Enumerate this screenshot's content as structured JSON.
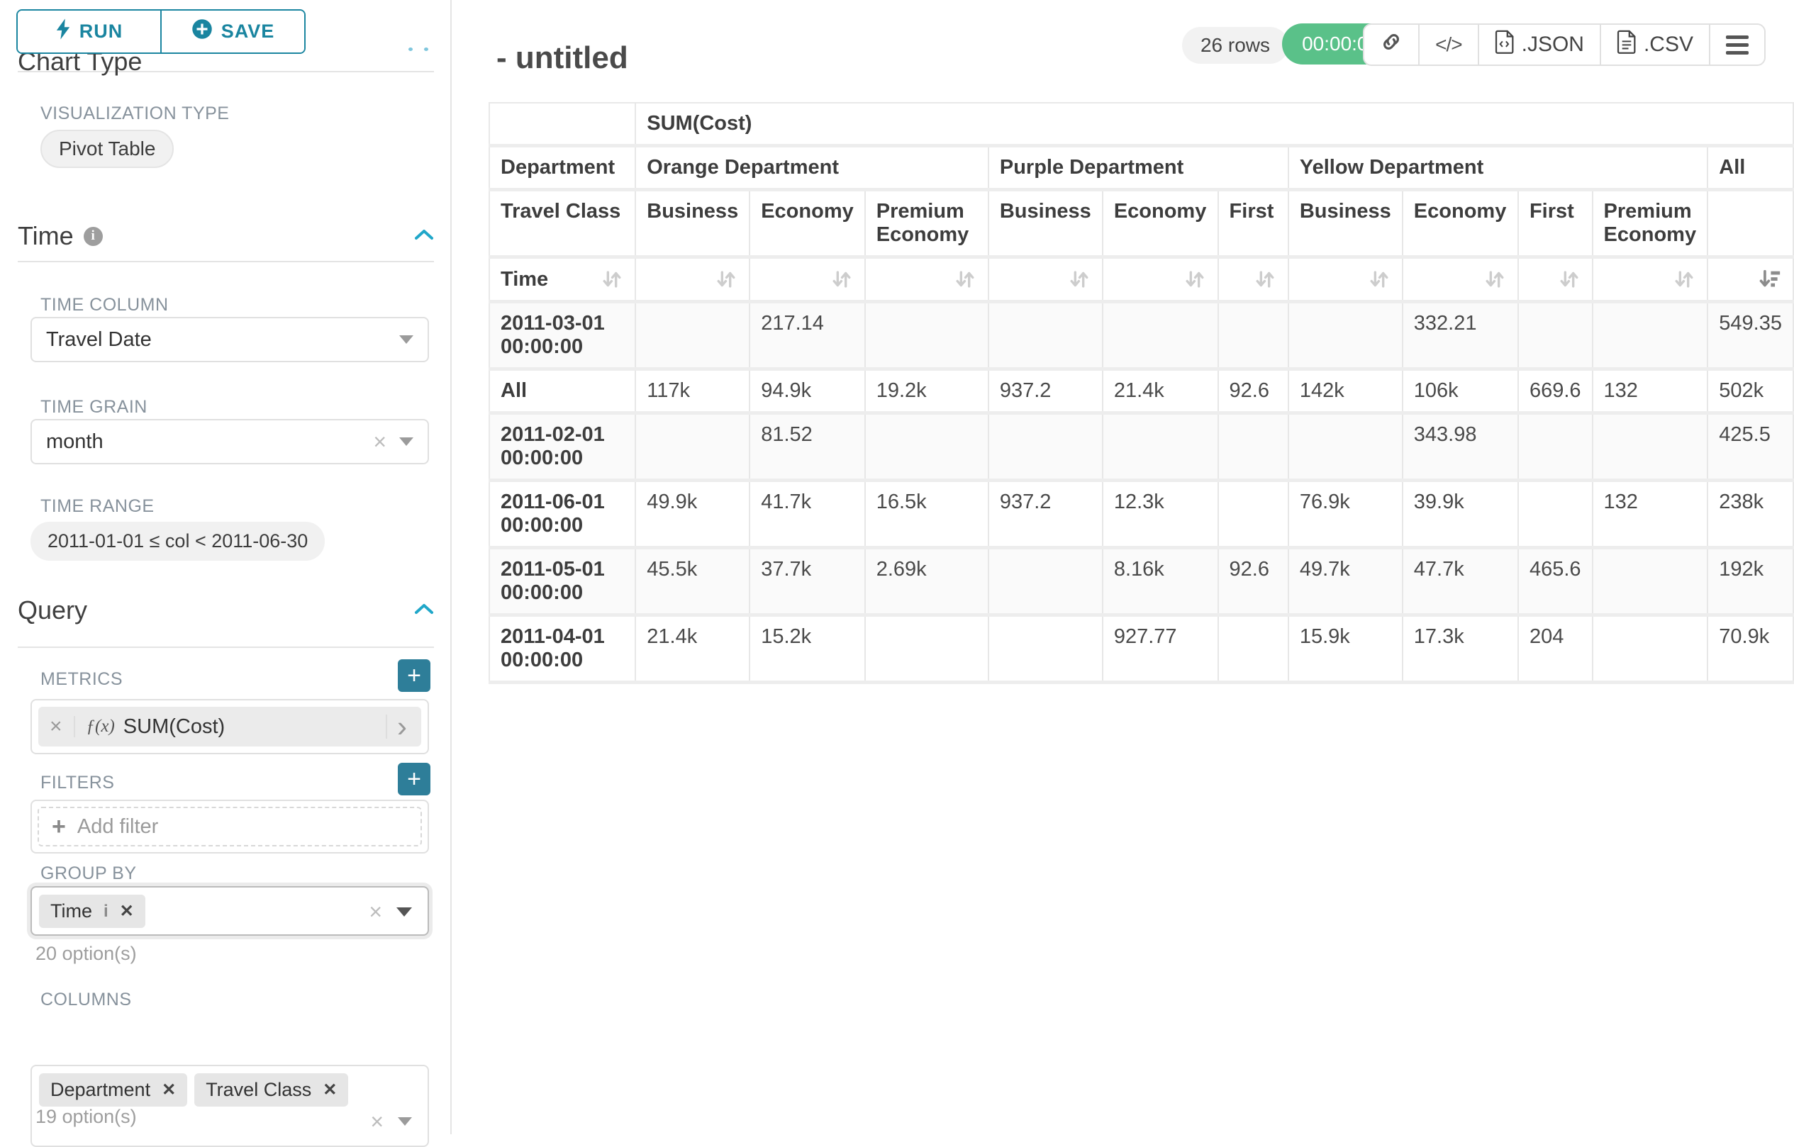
{
  "colors": {
    "accent_teal": "#1a85a0",
    "accent_blue": "#20a7c9",
    "timer_green": "#5ac189",
    "plus_button_teal": "#2e7e99"
  },
  "icons": {
    "run": "lightning-bolt-icon",
    "save": "plus-circle-icon",
    "time_info": "info-icon",
    "collapse": "chevron-up-icon",
    "select_caret": "chevron-down-icon",
    "metric_fn": "function-icon",
    "metric_open": "chevron-right-icon",
    "share": "link-icon",
    "embed": "code-icon",
    "export_json": "file-json-icon",
    "export_csv": "file-csv-icon",
    "menu": "hamburger-menu-icon",
    "sort": "sort-arrows-icon",
    "sort_desc": "sort-descending-icon"
  },
  "sidebar": {
    "run_label": "RUN",
    "save_label": "SAVE",
    "chart_type_heading": "Chart Type",
    "viz_label": "VISUALIZATION TYPE",
    "viz_value": "Pivot Table",
    "time": {
      "title": "Time",
      "column_label": "TIME COLUMN",
      "column_value": "Travel Date",
      "grain_label": "TIME GRAIN",
      "grain_value": "month",
      "range_label": "TIME RANGE",
      "range_value": "2011-01-01 ≤ col < 2011-06-30"
    },
    "query": {
      "title": "Query",
      "metrics_label": "METRICS",
      "metric_fx": "ƒ(x)",
      "metric_value": "SUM(Cost)",
      "filters_label": "FILTERS",
      "add_filter": "Add filter",
      "groupby_label": "GROUP BY",
      "groupby_tags": [
        "Time"
      ],
      "groupby_hint": "20 option(s)",
      "columns_label": "COLUMNS",
      "columns_tags": [
        "Department",
        "Travel Class"
      ],
      "columns_hint": "19 option(s)"
    }
  },
  "header": {
    "title": "- untitled",
    "rows_badge": "26 rows",
    "timer": "00:00:00.18",
    "json_label": ".JSON",
    "csv_label": ".CSV"
  },
  "chart_data": {
    "type": "table",
    "metric": "SUM(Cost)",
    "row_axis": "Time",
    "col_axis": "Department",
    "sub_col_axis": "Travel Class",
    "col_groups": [
      {
        "label": "Orange Department",
        "children": [
          "Business",
          "Economy",
          "Premium Economy"
        ]
      },
      {
        "label": "Purple Department",
        "children": [
          "Business",
          "Economy",
          "First"
        ]
      },
      {
        "label": "Yellow Department",
        "children": [
          "Business",
          "Economy",
          "First",
          "Premium Economy"
        ]
      },
      {
        "label": "All",
        "children": []
      }
    ],
    "rows": [
      {
        "label": "2011-03-01 00:00:00",
        "values": [
          "",
          "217.14",
          "",
          "",
          "",
          "",
          "",
          "332.21",
          "",
          "",
          "549.35"
        ]
      },
      {
        "label": "All",
        "values": [
          "117k",
          "94.9k",
          "19.2k",
          "937.2",
          "21.4k",
          "92.6",
          "142k",
          "106k",
          "669.6",
          "132",
          "502k"
        ]
      },
      {
        "label": "2011-02-01 00:00:00",
        "values": [
          "",
          "81.52",
          "",
          "",
          "",
          "",
          "",
          "343.98",
          "",
          "",
          "425.5"
        ]
      },
      {
        "label": "2011-06-01 00:00:00",
        "values": [
          "49.9k",
          "41.7k",
          "16.5k",
          "937.2",
          "12.3k",
          "",
          "76.9k",
          "39.9k",
          "",
          "132",
          "238k"
        ]
      },
      {
        "label": "2011-05-01 00:00:00",
        "values": [
          "45.5k",
          "37.7k",
          "2.69k",
          "",
          "8.16k",
          "92.6",
          "49.7k",
          "47.7k",
          "465.6",
          "",
          "192k"
        ]
      },
      {
        "label": "2011-04-01 00:00:00",
        "values": [
          "21.4k",
          "15.2k",
          "",
          "",
          "927.77",
          "",
          "15.9k",
          "17.3k",
          "204",
          "",
          "70.9k"
        ]
      }
    ],
    "sorted_column": "All",
    "sort_direction": "desc"
  }
}
